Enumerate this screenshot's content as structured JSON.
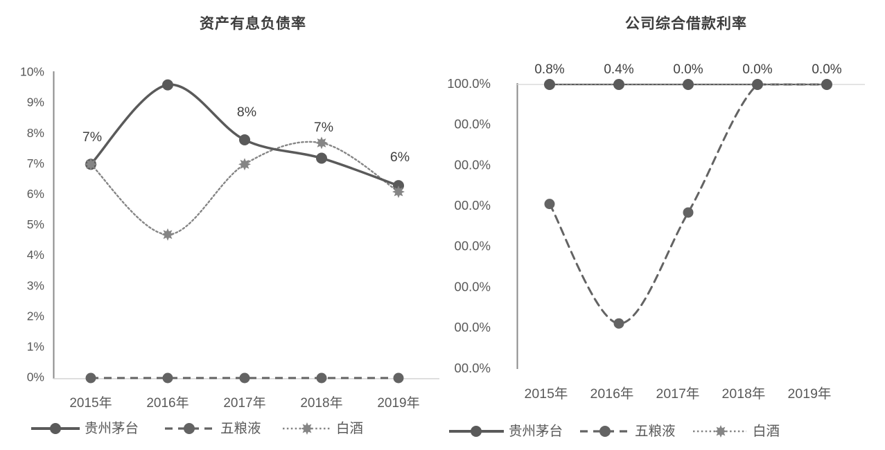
{
  "page": {
    "background": "#ffffff"
  },
  "colors": {
    "title_text": "#3d3d3d",
    "tick_text": "#595959",
    "data_label_text": "#3f3f3f",
    "axis_line": "#8a8a8a",
    "gridline": "#d4d4d4",
    "series_solid": "#5a5a5a",
    "series_dashed": "#636363",
    "series_dotted": "#858585"
  },
  "chart_data": [
    {
      "type": "line",
      "title": "资产有息负债率",
      "categories": [
        "2015年",
        "2016年",
        "2017年",
        "2018年",
        "2019年"
      ],
      "ylim": [
        0,
        10
      ],
      "ytick_labels": [
        "10%",
        "9%",
        "8%",
        "7%",
        "6%",
        "5%",
        "4%",
        "3%",
        "2%",
        "1%",
        "0%"
      ],
      "grid": "off",
      "legend_position": "bottom",
      "series": [
        {
          "name": "贵州茅台",
          "style": "solid",
          "marker": "circle",
          "values": [
            7.0,
            9.6,
            7.8,
            7.2,
            6.3
          ]
        },
        {
          "name": "五粮液",
          "style": "dashed",
          "marker": "circle",
          "values": [
            0,
            0,
            0,
            0,
            0
          ]
        },
        {
          "name": "白酒",
          "style": "dotted",
          "marker": "star",
          "values": [
            7.0,
            4.7,
            7.0,
            7.7,
            6.1
          ]
        }
      ],
      "point_labels": [
        {
          "x_index": 0,
          "text": "7%"
        },
        {
          "x_index": 2,
          "text": "8%"
        },
        {
          "x_index": 3,
          "text": "7%"
        },
        {
          "x_index": 4,
          "text": "6%"
        }
      ]
    },
    {
      "type": "line",
      "title": "公司综合借款利率",
      "categories": [
        "2015年",
        "2016年",
        "2017年",
        "2018年",
        "2019年"
      ],
      "ylim": [
        0,
        100
      ],
      "ytick_labels": [
        "100.0%",
        "00.0%",
        "00.0%",
        "00.0%",
        "00.0%",
        "00.0%",
        "00.0%",
        "00.0%"
      ],
      "grid": "off",
      "legend_position": "bottom",
      "series": [
        {
          "name": "贵州茅台",
          "style": "solid",
          "marker": "circle",
          "values": [
            100,
            100,
            100,
            100,
            100
          ]
        },
        {
          "name": "五粮液",
          "style": "dashed",
          "marker": "circle",
          "values": [
            58,
            16,
            55,
            100,
            100
          ]
        },
        {
          "name": "白酒",
          "style": "dotted",
          "marker": "star",
          "values": [
            100,
            100,
            100,
            100,
            100
          ]
        }
      ],
      "data_labels": [
        "0.8%",
        "0.4%",
        "0.0%",
        "0.0%",
        "0.0%"
      ]
    }
  ]
}
